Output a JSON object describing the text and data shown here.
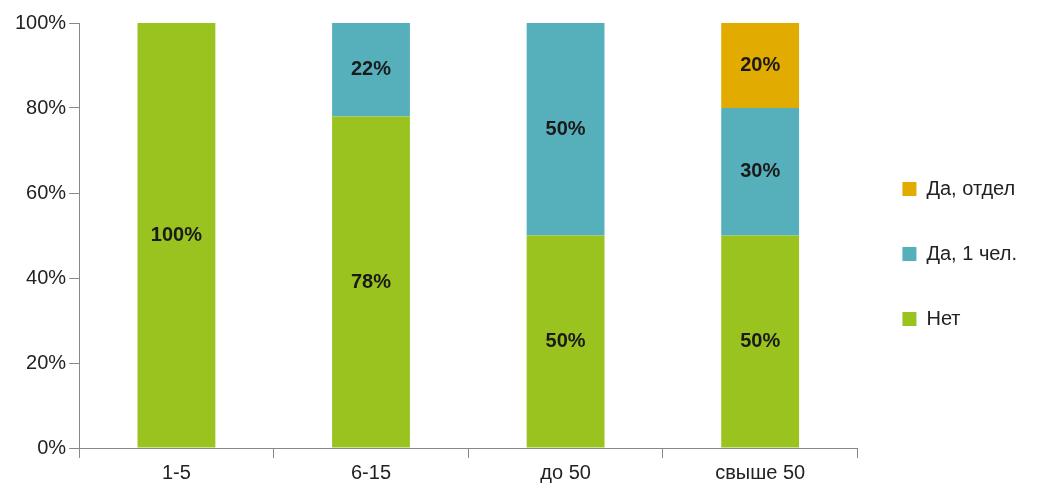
{
  "chart_data": {
    "type": "bar",
    "stacked": true,
    "categories": [
      "1-5",
      "6-15",
      "до 50",
      "свыше 50"
    ],
    "series": [
      {
        "name": "Нет",
        "color": "#9bc31f",
        "values": [
          100,
          78,
          50,
          50
        ],
        "value_labels": [
          "100%",
          "78%",
          "50%",
          "50%"
        ]
      },
      {
        "name": "Да, 1 чел.",
        "color": "#56b0bb",
        "values": [
          0,
          22,
          50,
          30
        ],
        "value_labels": [
          null,
          "22%",
          "50%",
          "30%"
        ]
      },
      {
        "name": "Да, отдел",
        "color": "#e1ab00",
        "values": [
          0,
          0,
          0,
          20
        ],
        "value_labels": [
          null,
          null,
          null,
          "20%"
        ]
      }
    ],
    "ylim": [
      0,
      100
    ],
    "yticks": [
      {
        "value": 0,
        "label": "0%"
      },
      {
        "value": 20,
        "label": "20%"
      },
      {
        "value": 40,
        "label": "40%"
      },
      {
        "value": 60,
        "label": "60%"
      },
      {
        "value": 80,
        "label": "80%"
      },
      {
        "value": 100,
        "label": "100%"
      }
    ],
    "legend": "right",
    "grid": false
  }
}
